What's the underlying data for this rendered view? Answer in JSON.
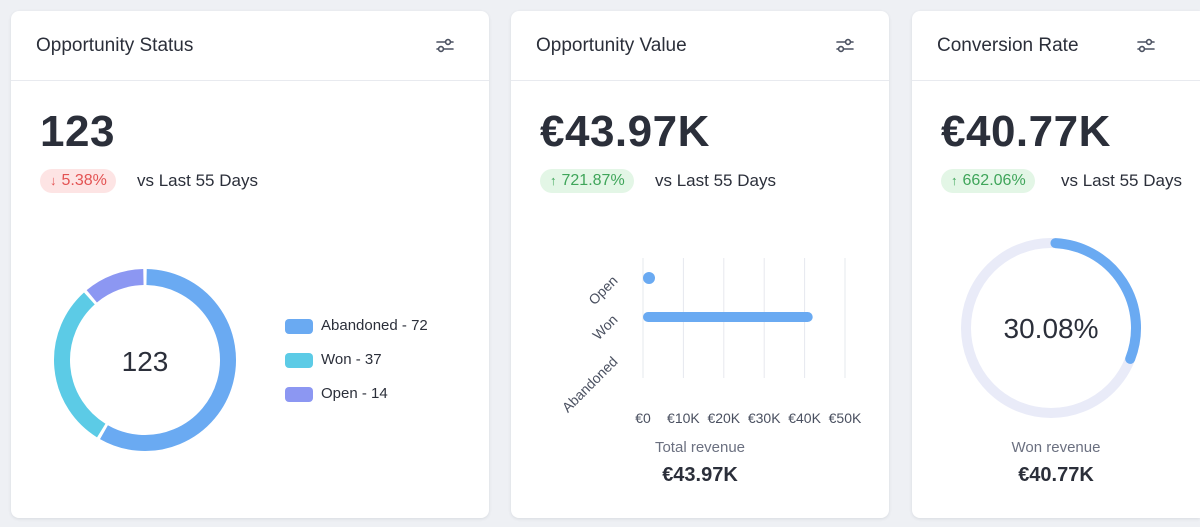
{
  "colors": {
    "abandoned": "#6aaaf2",
    "won": "#5ccbe6",
    "open": "#8c97f2",
    "negative": "#e35353",
    "positive": "#3fa55a",
    "ring_track": "#e9ebf8"
  },
  "opportunity_status": {
    "title": "Opportunity Status",
    "settings_icon": "sliders-icon",
    "value": "123",
    "delta": "5.38%",
    "delta_direction": "down",
    "delta_arrow": "↓",
    "comparison": "vs Last 55 Days",
    "donut_center": "123"
  },
  "opportunity_value": {
    "title": "Opportunity Value",
    "settings_icon": "sliders-icon",
    "value": "€43.97K",
    "delta": "721.87%",
    "delta_direction": "up",
    "delta_arrow": "↑",
    "comparison": "vs Last 55 Days",
    "footer_label": "Total revenue",
    "footer_value": "€43.97K"
  },
  "conversion_rate": {
    "title": "Conversion Rate",
    "settings_icon": "sliders-icon",
    "value": "€40.77K",
    "delta": "662.06%",
    "delta_direction": "up",
    "delta_arrow": "↑",
    "comparison": "vs Last 55 Days",
    "gauge_label": "30.08%",
    "gauge_fraction": 0.3008,
    "footer_label": "Won revenue",
    "footer_value": "€40.77K"
  },
  "chart_data": [
    {
      "type": "pie",
      "variant": "donut",
      "categories": [
        "Abandoned",
        "Won",
        "Open"
      ],
      "values": [
        72,
        37,
        14
      ],
      "legend": [
        "Abandoned - 72",
        "Won - 37",
        "Open - 14"
      ],
      "colors": [
        "#6aaaf2",
        "#5ccbe6",
        "#8c97f2"
      ],
      "center_label": "123",
      "legend_position": "right"
    },
    {
      "type": "bar",
      "orientation": "horizontal",
      "categories": [
        "Open",
        "Won",
        "Abandoned"
      ],
      "values": [
        0,
        40770,
        0
      ],
      "xlim": [
        0,
        50000
      ],
      "xticks": [
        "€0",
        "€10K",
        "€20K",
        "€30K",
        "€40K",
        "€50K"
      ],
      "grid": true,
      "color": "#6aaaf2"
    }
  ]
}
